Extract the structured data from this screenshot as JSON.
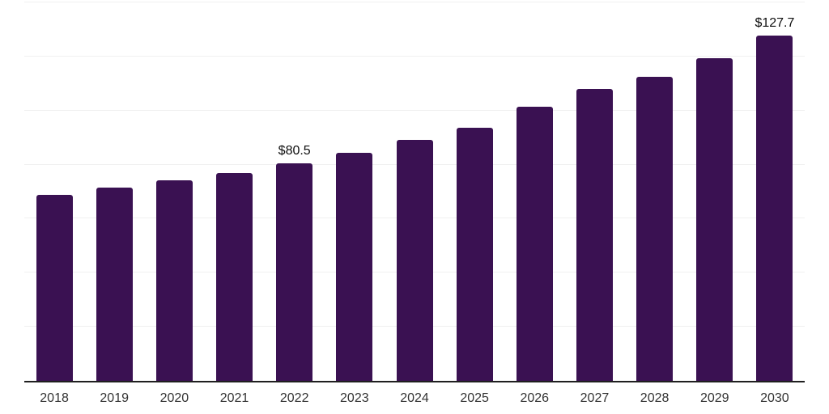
{
  "chart_data": {
    "type": "bar",
    "title": "",
    "xlabel": "",
    "ylabel": "",
    "categories": [
      "2018",
      "2019",
      "2020",
      "2021",
      "2022",
      "2023",
      "2024",
      "2025",
      "2026",
      "2027",
      "2028",
      "2029",
      "2030"
    ],
    "values": [
      68.9,
      71.5,
      74.3,
      77.0,
      80.5,
      84.4,
      89.2,
      93.6,
      101.4,
      107.9,
      112.4,
      119.3,
      127.7
    ],
    "value_labels": {
      "2022": "$80.5",
      "2030": "$127.7"
    },
    "ylim": [
      0,
      140
    ],
    "gridlines": {
      "step": 20,
      "orientation": "horizontal",
      "visible": true
    },
    "y_axis_tick_labels_visible": false,
    "legend": "none",
    "colors": {
      "background": "#ffffff",
      "bar": "#3a1152",
      "axis_line": "#1f1f1f",
      "gridline": "#f0f0f0",
      "tick_label": "#333333",
      "value_label": "#0d0d0d"
    }
  }
}
